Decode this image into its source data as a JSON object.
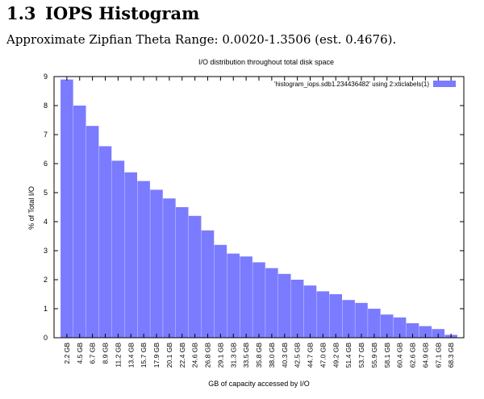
{
  "section": {
    "number": "1.3",
    "title": "IOPS Histogram"
  },
  "subtitle": "Approximate Zipfian Theta Range: 0.0020-1.3506 (est. 0.4676).",
  "chart_data": {
    "type": "bar",
    "title": "I/O distribution throughout total disk space",
    "xlabel": "GB of capacity accessed by I/O",
    "ylabel": "% of Total I/O",
    "ylim": [
      0,
      9
    ],
    "yticks": [
      0,
      1,
      2,
      3,
      4,
      5,
      6,
      7,
      8,
      9
    ],
    "grid": false,
    "legend_position": "top-right",
    "bar_color": "#7b7bff",
    "categories": [
      "2.2 GB",
      "4.5 GB",
      "6.7 GB",
      "8.9 GB",
      "11.2 GB",
      "13.4 GB",
      "15.7 GB",
      "17.9 GB",
      "20.1 GB",
      "22.4 GB",
      "24.6 GB",
      "26.8 GB",
      "29.1 GB",
      "31.3 GB",
      "33.5 GB",
      "35.8 GB",
      "38.0 GB",
      "40.3 GB",
      "42.5 GB",
      "44.7 GB",
      "47.0 GB",
      "49.2 GB",
      "51.4 GB",
      "53.7 GB",
      "55.9 GB",
      "58.1 GB",
      "60.4 GB",
      "62.6 GB",
      "64.9 GB",
      "67.1 GB",
      "68.3 GB"
    ],
    "series": [
      {
        "name": "'histogram_iops.sdb1.234436482' using 2:xticlabels(1)",
        "values": [
          8.9,
          8.0,
          7.3,
          6.6,
          6.1,
          5.7,
          5.4,
          5.1,
          4.8,
          4.5,
          4.2,
          3.7,
          3.2,
          2.9,
          2.8,
          2.6,
          2.4,
          2.2,
          2.0,
          1.8,
          1.6,
          1.5,
          1.3,
          1.2,
          1.0,
          0.8,
          0.7,
          0.5,
          0.4,
          0.3,
          0.1
        ]
      }
    ]
  }
}
